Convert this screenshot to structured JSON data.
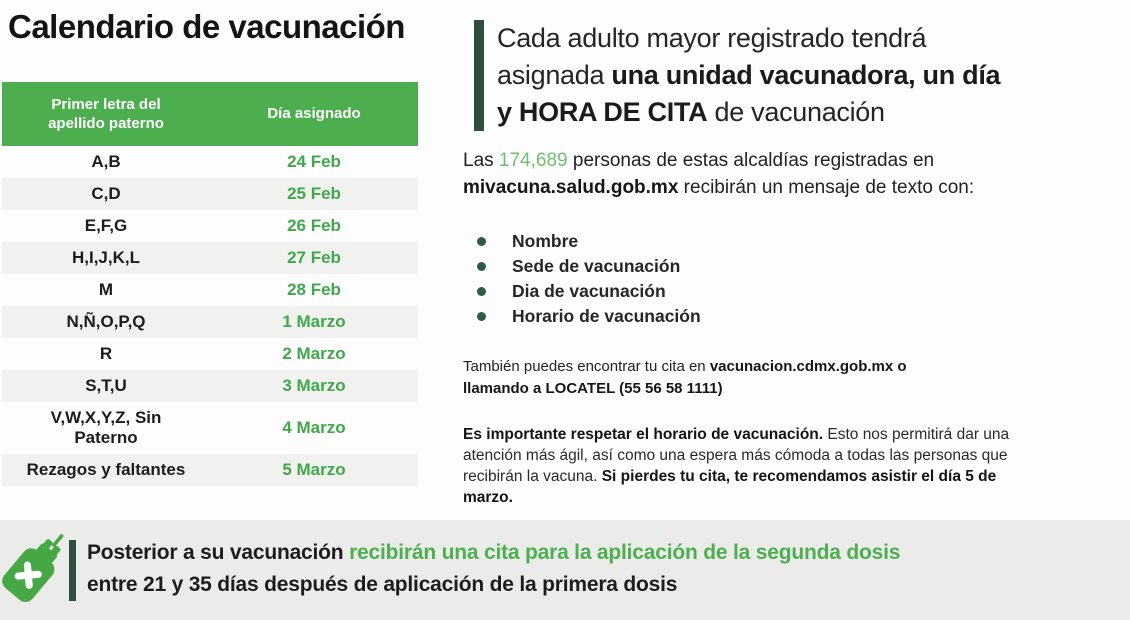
{
  "title": "Calendario de vacunación",
  "table": {
    "headers": [
      "Primer letra del apellido paterno",
      "Día asignado"
    ],
    "rows": [
      {
        "letters": "A,B",
        "day": "24 Feb"
      },
      {
        "letters": "C,D",
        "day": "25 Feb"
      },
      {
        "letters": "E,F,G",
        "day": "26 Feb"
      },
      {
        "letters": "H,I,J,K,L",
        "day": "27 Feb"
      },
      {
        "letters": "M",
        "day": "28 Feb"
      },
      {
        "letters": "N,Ñ,O,P,Q",
        "day": "1 Marzo"
      },
      {
        "letters": "R",
        "day": "2 Marzo"
      },
      {
        "letters": "S,T,U",
        "day": "3 Marzo"
      },
      {
        "letters": "V,W,X,Y,Z, Sin Paterno",
        "day": "4 Marzo"
      },
      {
        "letters": "Rezagos y faltantes",
        "day": "5 Marzo"
      }
    ]
  },
  "headline": {
    "line1": "Cada adulto mayor registrado tendrá",
    "line2_pre": "asignada ",
    "line2_bold": "una unidad vacunadora, un día",
    "line3_bold": "y HORA DE CITA",
    "line3_post": " de vacunación"
  },
  "registered": {
    "pre": "Las ",
    "count": "174,689",
    "mid": " personas de estas alcaldías registradas en ",
    "site": "mivacuna.salud.gob.mx",
    "post": " recibirán un mensaje de texto con:"
  },
  "bullets": [
    "Nombre",
    "Sede de vacunación",
    "Dia de vacunación",
    "Horario de vacunación"
  ],
  "cita": {
    "pre": "También puedes encontrar tu cita en ",
    "bold": "vacunacion.cdmx.gob.mx o llamando a LOCATEL (55 56 58 1111)"
  },
  "importante": {
    "bold1": "Es importante respetar el horario de vacunación.",
    "mid": " Esto nos permitirá dar una atención más ágil, así como una espera más cómoda a todas las personas que recibirán la vacuna. ",
    "bold2": "Si pierdes tu cita, te recomendamos asistir el día 5 de marzo."
  },
  "banner": {
    "icon": "syringe-icon",
    "bold_black_1": "Posterior a su vacunación ",
    "green": "recibirán una cita para la aplicación de la segunda dosis",
    "bold_black_2": "entre 21 y 35 días después de aplicación de la primera dosis"
  },
  "colors": {
    "table_header_green": "#4cae4f",
    "date_green": "#3fa84a",
    "count_green": "#6fbf6f",
    "banner_green": "#4caf50",
    "accent_bar_dark": "#2e4e3f",
    "banner_bg": "#ebece9",
    "row_alt_gray": "#f1f1f0",
    "bullet_dot": "#2d5a44",
    "icon_green": "#45a844"
  }
}
